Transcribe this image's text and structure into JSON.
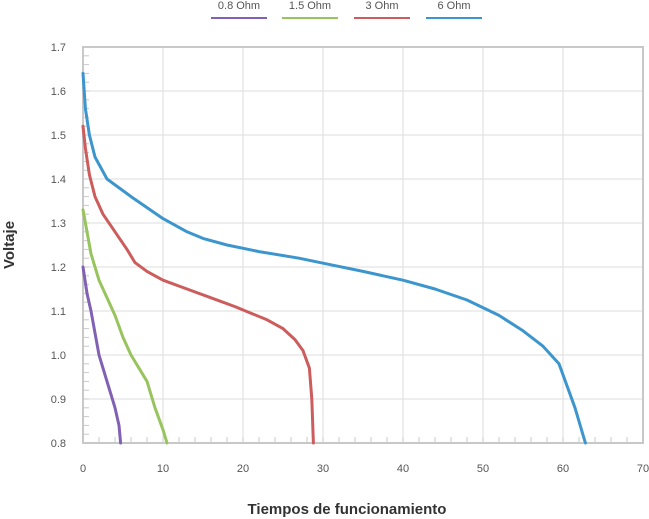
{
  "chart_data": {
    "type": "line",
    "title": "",
    "xlabel": "Tiempos de funcionamiento",
    "ylabel": "Voltaje",
    "xlim": [
      0,
      70
    ],
    "ylim": [
      0.8,
      1.7
    ],
    "x_ticks": [
      0,
      10,
      20,
      30,
      40,
      50,
      60,
      70
    ],
    "y_ticks": [
      0.8,
      0.9,
      1.0,
      1.1,
      1.2,
      1.3,
      1.4,
      1.5,
      1.6,
      1.7
    ],
    "x_tick_labels": [
      "0",
      "10",
      "20",
      "30",
      "40",
      "50",
      "60",
      "70"
    ],
    "y_tick_labels": [
      "0.8",
      "0.9",
      "1.0",
      "1.1",
      "1.2",
      "1.3",
      "1.4",
      "1.5",
      "1.6",
      "1.7"
    ],
    "grid": true,
    "legend_position": "top-center",
    "series": [
      {
        "name": "0.8 Ohm",
        "color": "#8061b3",
        "points": [
          [
            0,
            1.2
          ],
          [
            0.5,
            1.14
          ],
          [
            1,
            1.1
          ],
          [
            1.5,
            1.05
          ],
          [
            2,
            1.0
          ],
          [
            2.5,
            0.97
          ],
          [
            3,
            0.94
          ],
          [
            3.5,
            0.91
          ],
          [
            4,
            0.88
          ],
          [
            4.5,
            0.84
          ],
          [
            4.7,
            0.8
          ]
        ]
      },
      {
        "name": "1.5 Ohm",
        "color": "#98c45e",
        "points": [
          [
            0,
            1.33
          ],
          [
            0.5,
            1.28
          ],
          [
            1,
            1.23
          ],
          [
            2,
            1.17
          ],
          [
            3,
            1.13
          ],
          [
            4,
            1.09
          ],
          [
            5,
            1.04
          ],
          [
            6,
            1.0
          ],
          [
            7,
            0.97
          ],
          [
            8,
            0.94
          ],
          [
            9,
            0.88
          ],
          [
            10,
            0.83
          ],
          [
            10.5,
            0.8
          ]
        ]
      },
      {
        "name": "3 Ohm",
        "color": "#cd5c5c",
        "points": [
          [
            0,
            1.52
          ],
          [
            0.3,
            1.47
          ],
          [
            0.8,
            1.41
          ],
          [
            1.5,
            1.36
          ],
          [
            2.5,
            1.32
          ],
          [
            4,
            1.28
          ],
          [
            5.5,
            1.24
          ],
          [
            6.5,
            1.21
          ],
          [
            8,
            1.19
          ],
          [
            10,
            1.17
          ],
          [
            13,
            1.15
          ],
          [
            16,
            1.13
          ],
          [
            19,
            1.11
          ],
          [
            21,
            1.095
          ],
          [
            23,
            1.08
          ],
          [
            25,
            1.06
          ],
          [
            26.5,
            1.035
          ],
          [
            27.5,
            1.01
          ],
          [
            28.3,
            0.97
          ],
          [
            28.6,
            0.9
          ],
          [
            28.8,
            0.8
          ]
        ]
      },
      {
        "name": "6 Ohm",
        "color": "#3c96cd",
        "points": [
          [
            0,
            1.64
          ],
          [
            0.3,
            1.56
          ],
          [
            0.8,
            1.5
          ],
          [
            1.5,
            1.45
          ],
          [
            3,
            1.4
          ],
          [
            6,
            1.36
          ],
          [
            10,
            1.31
          ],
          [
            13,
            1.28
          ],
          [
            15,
            1.265
          ],
          [
            18,
            1.25
          ],
          [
            22,
            1.235
          ],
          [
            27,
            1.22
          ],
          [
            31,
            1.205
          ],
          [
            35,
            1.19
          ],
          [
            40,
            1.17
          ],
          [
            44,
            1.15
          ],
          [
            48,
            1.125
          ],
          [
            52,
            1.09
          ],
          [
            55,
            1.055
          ],
          [
            57.5,
            1.02
          ],
          [
            59.5,
            0.98
          ],
          [
            60.5,
            0.93
          ],
          [
            61.5,
            0.88
          ],
          [
            62.8,
            0.8
          ]
        ]
      }
    ]
  }
}
